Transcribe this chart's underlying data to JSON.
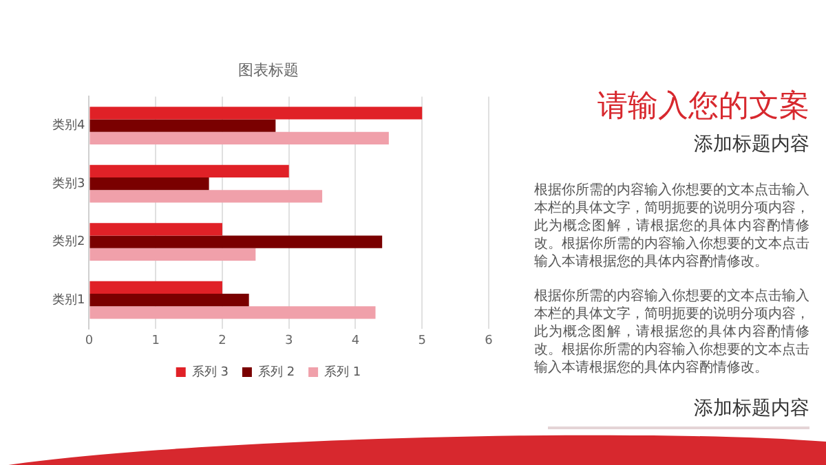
{
  "chart_data": {
    "type": "bar",
    "orientation": "horizontal",
    "title": "图表标题",
    "categories": [
      "类别4",
      "类别3",
      "类别2",
      "类别1"
    ],
    "series": [
      {
        "name": "系列 3",
        "color": "#e02127",
        "values": [
          5,
          3,
          2,
          2
        ]
      },
      {
        "name": "系列 2",
        "color": "#7a0000",
        "values": [
          2.8,
          1.8,
          4.4,
          2.4
        ]
      },
      {
        "name": "系列 1",
        "color": "#f0a0aa",
        "values": [
          4.5,
          3.5,
          2.5,
          4.3
        ]
      }
    ],
    "xlim": [
      0,
      6
    ],
    "xticks": [
      0,
      1,
      2,
      3,
      4,
      5,
      6
    ],
    "grid": "x",
    "legend": "bottom",
    "annotations": [
      "请输入您的文案",
      "添加标题内容",
      "根据你所需的内容输入你想要的文本点击输入本栏的具体文字，简明扼要的说明分项内容，此为概念图解，请根据您的具体内容酌情修改。根据你所需的内容输入你想要的文本点击输入本请根据您的具体内容酌情修改。",
      "根据你所需的内容输入你想要的文本点击输入本栏的具体文字，简明扼要的说明分项内容，此为概念图解，请根据您的具体内容酌情修改。根据你所需的内容输入你想要的文本点击输入本请根据您的具体内容酌情修改。",
      "添加标题内容"
    ]
  }
}
